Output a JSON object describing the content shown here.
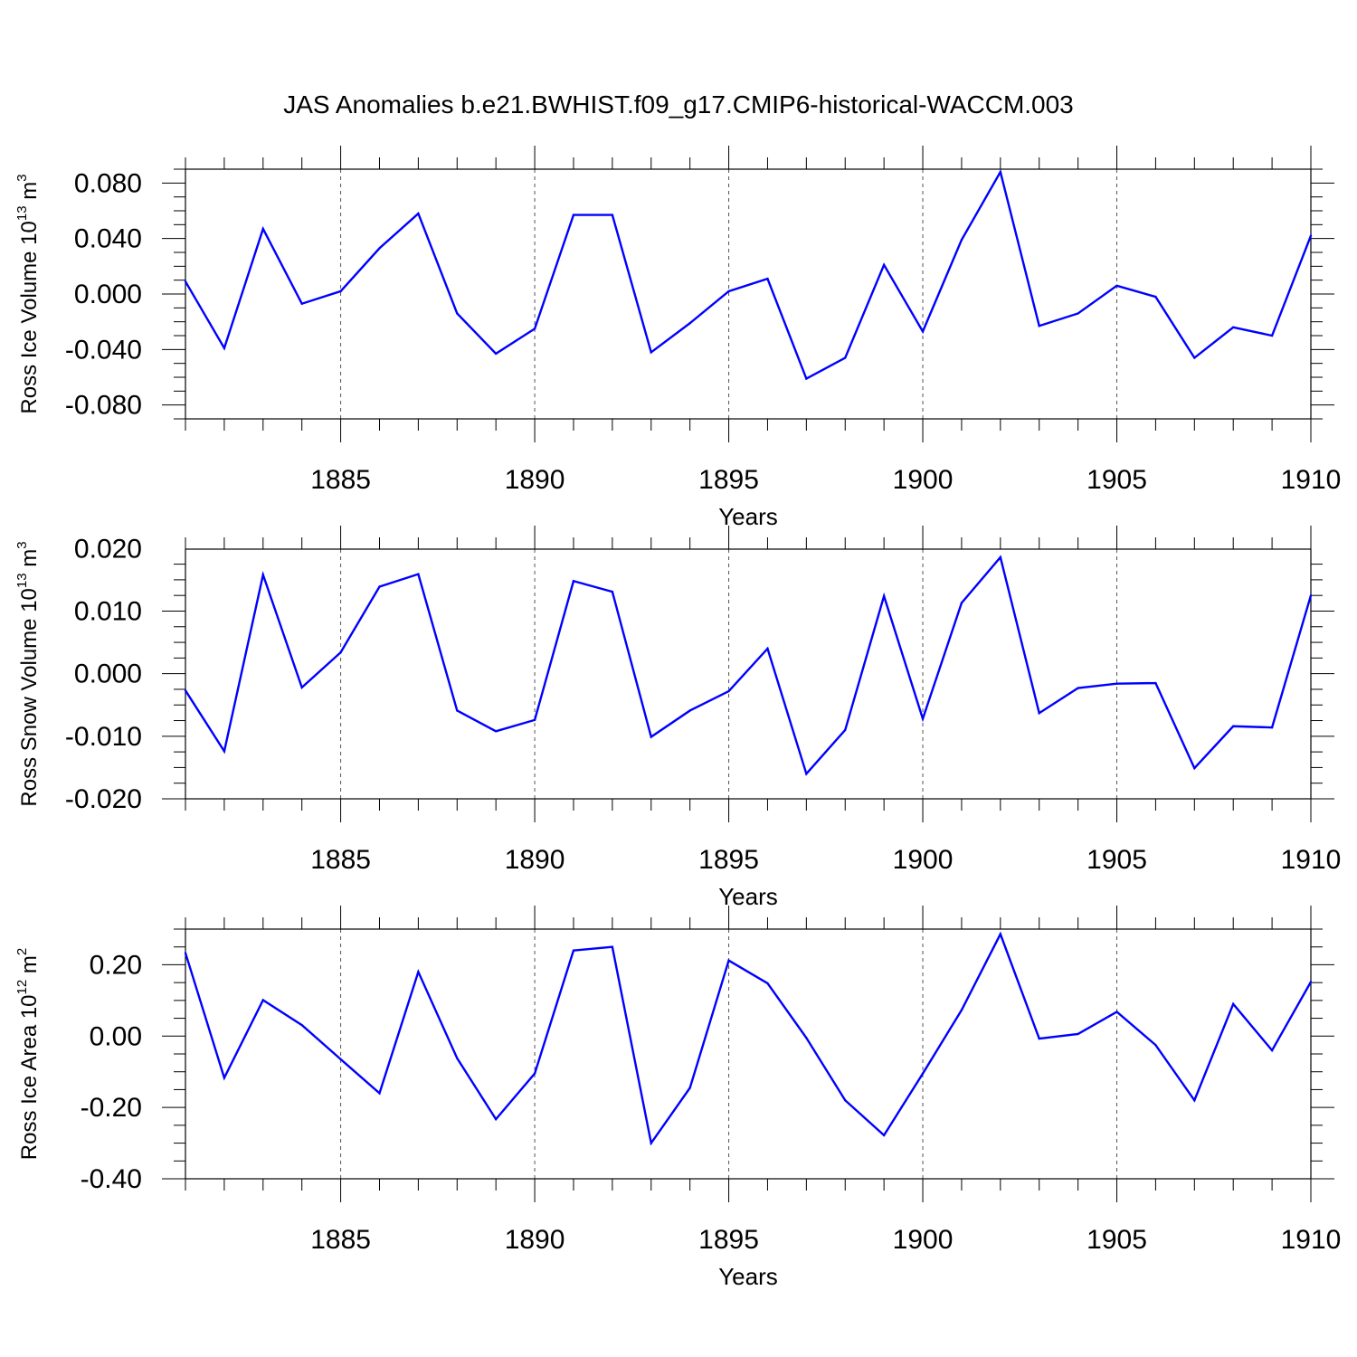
{
  "figure": {
    "title": "JAS Anomalies b.e21.BWHIST.f09_g17.CMIP6-historical-WACCM.003"
  },
  "colors": {
    "line": "#0000ff",
    "axis": "#000000",
    "grid": "#555555"
  },
  "chart_data": [
    {
      "type": "line",
      "ylabel_main": "Ross Ice Volume 10",
      "ylabel_exp": "13",
      "ylabel_unit": " m",
      "ylabel_unit_exp": "3",
      "xlabel": "Years",
      "xlim": [
        1881,
        1910
      ],
      "ylim": [
        -0.09,
        0.09
      ],
      "xticks": [
        1885,
        1890,
        1895,
        1900,
        1905,
        1910
      ],
      "xtick_labels": [
        "1885",
        "1890",
        "1895",
        "1900",
        "1905",
        "1910"
      ],
      "yticks": [
        -0.08,
        -0.04,
        0.0,
        0.04,
        0.08
      ],
      "ytick_labels": [
        "-0.080",
        "-0.040",
        "0.000",
        "0.040",
        "0.080"
      ],
      "yminor_step": 0.01,
      "x": [
        1881,
        1882,
        1883,
        1884,
        1885,
        1886,
        1887,
        1888,
        1889,
        1890,
        1891,
        1892,
        1893,
        1894,
        1895,
        1896,
        1897,
        1898,
        1899,
        1900,
        1901,
        1902,
        1903,
        1904,
        1905,
        1906,
        1907,
        1908,
        1909,
        1910
      ],
      "series": [
        {
          "name": "Ross Ice Volume",
          "values": [
            0.009,
            -0.039,
            0.047,
            -0.007,
            0.002,
            0.033,
            0.058,
            -0.014,
            -0.043,
            -0.025,
            0.057,
            0.057,
            -0.042,
            -0.021,
            0.002,
            0.011,
            -0.061,
            -0.046,
            0.021,
            -0.027,
            0.039,
            0.088,
            -0.023,
            -0.014,
            0.006,
            -0.002,
            -0.046,
            -0.024,
            -0.03,
            0.042
          ]
        }
      ]
    },
    {
      "type": "line",
      "ylabel_main": "Ross Snow Volume 10",
      "ylabel_exp": "13",
      "ylabel_unit": " m",
      "ylabel_unit_exp": "3",
      "xlabel": "Years",
      "xlim": [
        1881,
        1910
      ],
      "ylim": [
        -0.02,
        0.0199
      ],
      "xticks": [
        1885,
        1890,
        1895,
        1900,
        1905,
        1910
      ],
      "xtick_labels": [
        "1885",
        "1890",
        "1895",
        "1900",
        "1905",
        "1910"
      ],
      "yticks": [
        -0.02,
        -0.01,
        0.0,
        0.01,
        0.02
      ],
      "ytick_labels": [
        "-0.020",
        "-0.010",
        "0.000",
        "0.010",
        "0.020"
      ],
      "yminor_step": 0.0025,
      "x": [
        1881,
        1882,
        1883,
        1884,
        1885,
        1886,
        1887,
        1888,
        1889,
        1890,
        1891,
        1892,
        1893,
        1894,
        1895,
        1896,
        1897,
        1898,
        1899,
        1900,
        1901,
        1902,
        1903,
        1904,
        1905,
        1906,
        1907,
        1908,
        1909,
        1910
      ],
      "series": [
        {
          "name": "Ross Snow Volume",
          "values": [
            -0.0027,
            -0.0124,
            0.0158,
            -0.0022,
            0.0034,
            0.0139,
            0.0159,
            -0.0059,
            -0.0092,
            -0.0074,
            0.0148,
            0.0131,
            -0.0101,
            -0.0059,
            -0.0028,
            0.004,
            -0.016,
            -0.009,
            0.0124,
            -0.0072,
            0.0113,
            0.0186,
            -0.0063,
            -0.0023,
            -0.0016,
            -0.0015,
            -0.0151,
            -0.0084,
            -0.0086,
            0.0125
          ]
        }
      ]
    },
    {
      "type": "line",
      "ylabel_main": "Ross Ice Area 10",
      "ylabel_exp": "12",
      "ylabel_unit": " m",
      "ylabel_unit_exp": "2",
      "xlabel": "Years",
      "xlim": [
        1881,
        1910
      ],
      "ylim": [
        -0.4,
        0.3
      ],
      "xticks": [
        1885,
        1890,
        1895,
        1900,
        1905,
        1910
      ],
      "xtick_labels": [
        "1885",
        "1890",
        "1895",
        "1900",
        "1905",
        "1910"
      ],
      "yticks": [
        -0.4,
        -0.2,
        0.0,
        0.2
      ],
      "ytick_labels": [
        "-0.40",
        "-0.20",
        "0.00",
        "0.20"
      ],
      "yminor_step": 0.05,
      "x": [
        1881,
        1882,
        1883,
        1884,
        1885,
        1886,
        1887,
        1888,
        1889,
        1890,
        1891,
        1892,
        1893,
        1894,
        1895,
        1896,
        1897,
        1898,
        1899,
        1900,
        1901,
        1902,
        1903,
        1904,
        1905,
        1906,
        1907,
        1908,
        1909,
        1910
      ],
      "series": [
        {
          "name": "Ross Ice Area",
          "values": [
            0.233,
            -0.117,
            0.101,
            0.031,
            -0.065,
            -0.16,
            0.18,
            -0.062,
            -0.233,
            -0.105,
            0.24,
            0.25,
            -0.3,
            -0.145,
            0.212,
            0.148,
            -0.005,
            -0.18,
            -0.278,
            -0.105,
            0.073,
            0.286,
            -0.007,
            0.006,
            0.068,
            -0.025,
            -0.18,
            0.09,
            -0.04,
            0.152
          ]
        }
      ]
    }
  ]
}
